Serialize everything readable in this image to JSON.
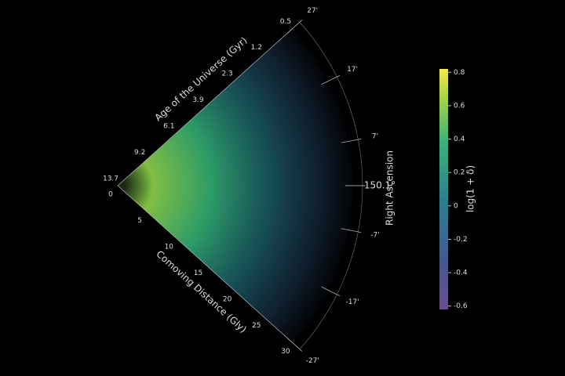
{
  "chart_data": {
    "type": "polar-wedge",
    "rlabel": "Comoving Distance (Gly)",
    "rlim": [
      0,
      30
    ],
    "rticks": [
      0,
      5,
      10,
      15,
      20,
      25,
      30
    ],
    "age_label": "Age of the Universe (Gyr)",
    "age_ticks": [
      {
        "value": 0,
        "label": "13.7"
      },
      {
        "value": 5,
        "label": "9.2"
      },
      {
        "value": 10,
        "label": "6.1"
      },
      {
        "value": 15,
        "label": "3.9"
      },
      {
        "value": 20,
        "label": "2.3"
      },
      {
        "value": 25,
        "label": "1.2"
      },
      {
        "value": 30,
        "label": "0.5"
      }
    ],
    "thetalabel": "Right Ascension",
    "thetalim": [
      -27,
      27
    ],
    "thetaticks": [
      {
        "value": 27,
        "label": "27'"
      },
      {
        "value": 17,
        "label": "17'"
      },
      {
        "value": 7,
        "label": "7'"
      },
      {
        "value": 0,
        "label": "150.1°"
      },
      {
        "value": -7,
        "label": "-7'"
      },
      {
        "value": -17,
        "label": "-17'"
      },
      {
        "value": -27,
        "label": "-27'"
      }
    ],
    "colorbar_label": "log(1 + δ)",
    "clim": [
      -0.62,
      0.82
    ],
    "cticks": [
      -0.6,
      -0.4,
      -0.2,
      0.0,
      0.2,
      0.4,
      0.6,
      0.8
    ]
  }
}
